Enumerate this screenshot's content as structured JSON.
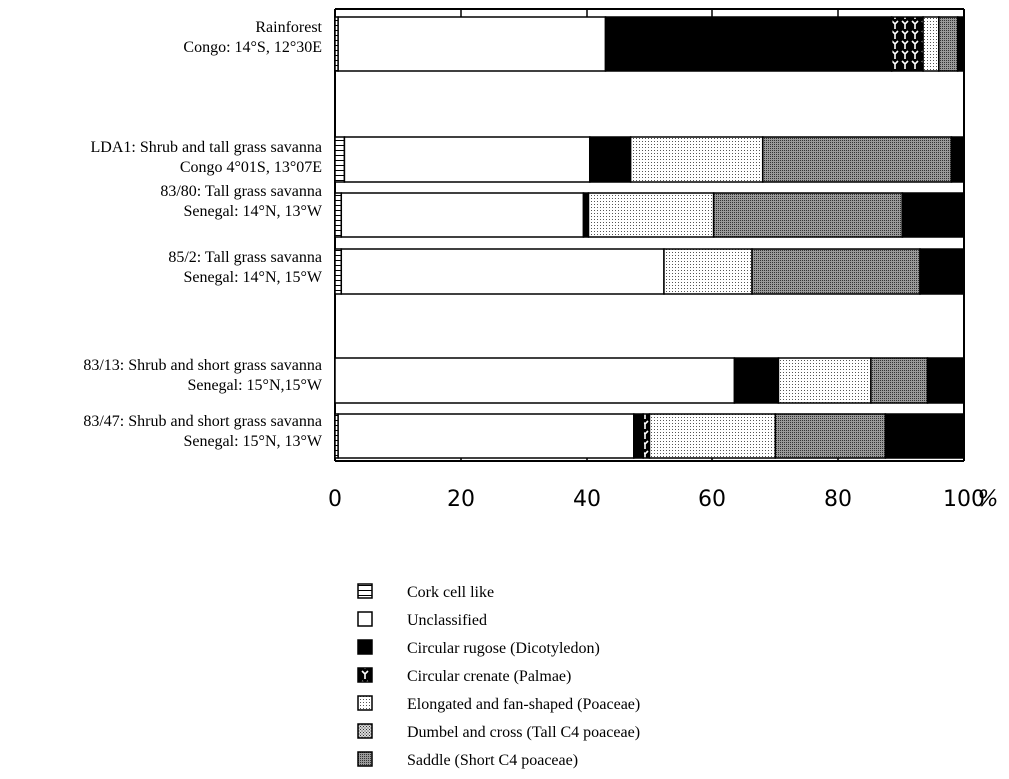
{
  "chart_data": {
    "type": "bar",
    "stacked": true,
    "orientation": "horizontal",
    "x_unit": "%",
    "xlim": [
      0,
      100
    ],
    "xticks": [
      "0",
      "20",
      "40",
      "60",
      "80",
      "100"
    ],
    "categories": [
      [
        "Rainforest",
        "Congo: 14°S, 12°30E"
      ],
      [
        "LDA1: Shrub and tall grass savanna",
        "Congo   4°01S, 13°07E"
      ],
      [
        "83/80: Tall grass savanna",
        "Senegal: 14°N, 13°W"
      ],
      [
        "85/2: Tall grass savanna",
        "Senegal: 14°N, 15°W"
      ],
      [
        "83/13: Shrub and short grass savanna",
        "Senegal: 15°N,15°W"
      ],
      [
        "83/47: Shrub and short grass savanna",
        "Senegal: 15°N, 13°W"
      ]
    ],
    "series": [
      {
        "name": "Cork cell like",
        "values": [
          0.5,
          1.5,
          1.0,
          1.0,
          0,
          0.5
        ]
      },
      {
        "name": "Unclassified",
        "values": [
          42.5,
          39.0,
          38.5,
          51.3,
          63.5,
          47.0
        ]
      },
      {
        "name": "Circular rugose (Dicotyledon)",
        "values": [
          45.5,
          6.5,
          0.8,
          0,
          7.0,
          1.5
        ]
      },
      {
        "name": "Circular crenate (Palmae)",
        "values": [
          5.0,
          0,
          0,
          0,
          0,
          1.0
        ]
      },
      {
        "name": "Elongated and fan-shaped (Poaceae)",
        "values": [
          2.5,
          21.0,
          19.9,
          14.0,
          14.7,
          20.0
        ]
      },
      {
        "name": "Dumbel and cross (Tall C4 poaceae)",
        "values": [
          0,
          0,
          0,
          0,
          0,
          0
        ]
      },
      {
        "name": "Saddle (Short C4 poaceae)",
        "values": [
          3.0,
          30.0,
          30.0,
          26.7,
          9.0,
          17.5
        ]
      },
      {
        "name": "",
        "values": [
          1.0,
          2.0,
          9.8,
          7.0,
          5.8,
          12.5
        ]
      }
    ]
  },
  "legend": {
    "entries": [
      "Cork cell like",
      "Unclassified",
      "Circular rugose (Dicotyledon)",
      "Circular crenate (Palmae)",
      "Elongated and fan-shaped (Poaceae)",
      "Dumbel and cross (Tall C4 poaceae)",
      "Saddle (Short C4 poaceae)"
    ]
  },
  "axis": {
    "percent_sign": "%"
  }
}
